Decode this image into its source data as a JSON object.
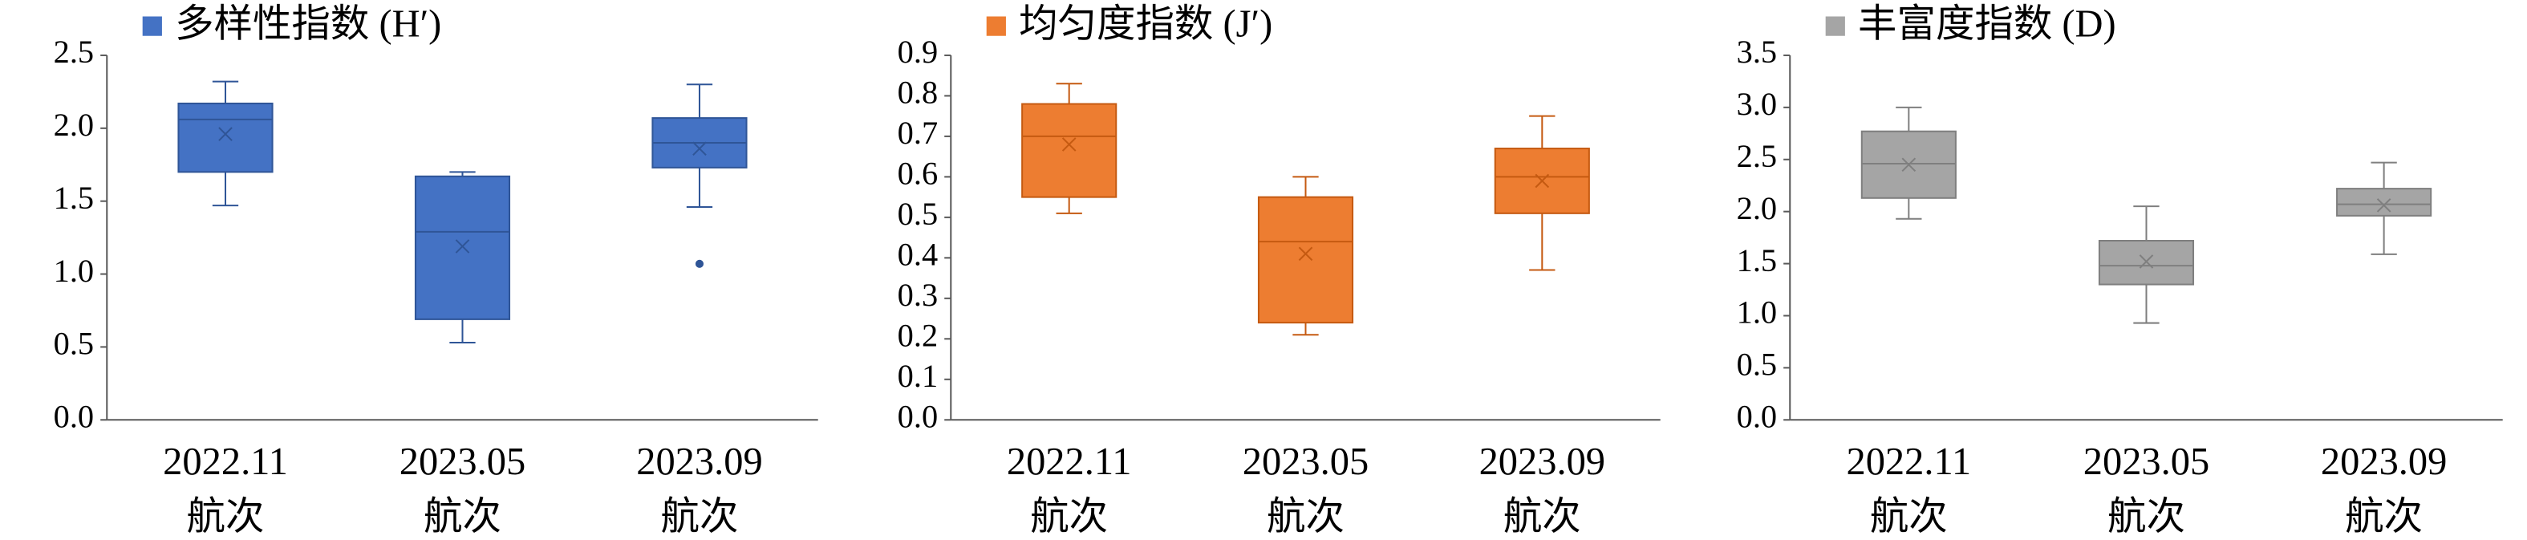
{
  "chart_data": [
    {
      "type": "box",
      "categories": [
        [
          "2022.11",
          "航次"
        ],
        [
          "2023.05",
          "航次"
        ],
        [
          "2023.09",
          "航次"
        ]
      ],
      "series": [
        {
          "name": "多样性指数 (H′)",
          "color": "#4472c4",
          "stroke": "#2f5597",
          "boxes": [
            {
              "min": 1.47,
              "q1": 1.7,
              "median": 2.06,
              "q3": 2.17,
              "max": 2.32,
              "mean": 1.96
            },
            {
              "min": 0.53,
              "q1": 0.69,
              "median": 1.29,
              "q3": 1.67,
              "max": 1.7,
              "mean": 1.19
            },
            {
              "min": 1.46,
              "q1": 1.73,
              "median": 1.9,
              "q3": 2.07,
              "max": 2.3,
              "mean": 1.86,
              "outliers": [
                1.07
              ]
            }
          ]
        }
      ],
      "ylim": [
        0,
        2.5
      ],
      "yticks": [
        {
          "value": 0,
          "label": "0.0"
        },
        0.5,
        {
          "value": 1,
          "label": "1.0"
        },
        1.5,
        {
          "value": 2,
          "label": "2.0"
        },
        2.5
      ]
    },
    {
      "type": "box",
      "categories": [
        [
          "2022.11",
          "航次"
        ],
        [
          "2023.05",
          "航次"
        ],
        [
          "2023.09",
          "航次"
        ]
      ],
      "series": [
        {
          "name": "均匀度指数 (J′)",
          "color": "#ed7d31",
          "stroke": "#c55a11",
          "boxes": [
            {
              "min": 0.51,
              "q1": 0.55,
              "median": 0.7,
              "q3": 0.78,
              "max": 0.83,
              "mean": 0.68
            },
            {
              "min": 0.21,
              "q1": 0.24,
              "median": 0.44,
              "q3": 0.55,
              "max": 0.6,
              "mean": 0.41
            },
            {
              "min": 0.37,
              "q1": 0.51,
              "median": 0.6,
              "q3": 0.67,
              "max": 0.75,
              "mean": 0.59
            }
          ]
        }
      ],
      "ylim": [
        0,
        0.9
      ],
      "yticks": [
        {
          "value": 0,
          "label": "0.0"
        },
        0.1,
        0.2,
        0.3,
        0.4,
        0.5,
        0.6,
        0.7,
        0.8,
        0.9
      ]
    },
    {
      "type": "box",
      "categories": [
        [
          "2022.11",
          "航次"
        ],
        [
          "2023.05",
          "航次"
        ],
        [
          "2023.09",
          "航次"
        ]
      ],
      "series": [
        {
          "name": "丰富度指数 (D)",
          "color": "#a5a5a5",
          "stroke": "#7f7f7f",
          "boxes": [
            {
              "min": 1.93,
              "q1": 2.13,
              "median": 2.46,
              "q3": 2.77,
              "max": 3.0,
              "mean": 2.45
            },
            {
              "min": 0.93,
              "q1": 1.3,
              "median": 1.48,
              "q3": 1.72,
              "max": 2.05,
              "mean": 1.52
            },
            {
              "min": 1.59,
              "q1": 1.96,
              "median": 2.07,
              "q3": 2.22,
              "max": 2.47,
              "mean": 2.06
            }
          ]
        }
      ],
      "ylim": [
        0,
        3.5
      ],
      "yticks": [
        {
          "value": 0,
          "label": "0.0"
        },
        0.5,
        {
          "value": 1,
          "label": "1.0"
        },
        1.5,
        {
          "value": 2,
          "label": "2.0"
        },
        2.5,
        {
          "value": 3,
          "label": "3.0"
        },
        3.5
      ]
    }
  ]
}
